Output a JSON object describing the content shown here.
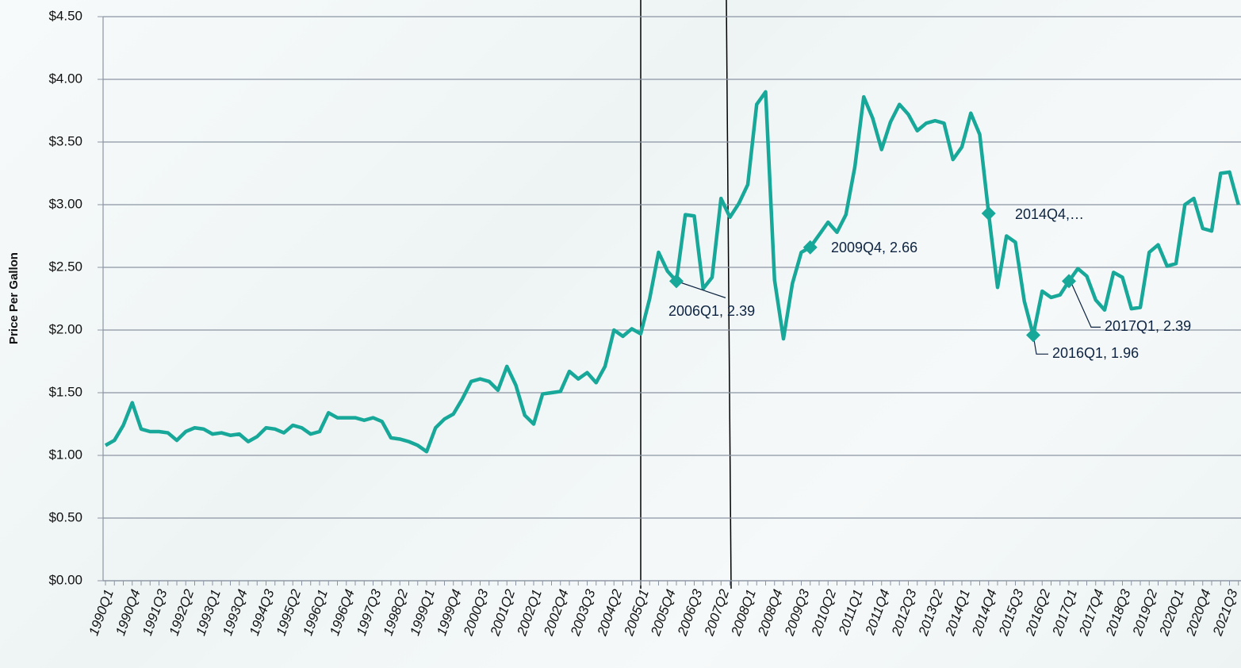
{
  "chart_data": {
    "type": "line",
    "y_axis_label": "Price Per Gallon",
    "categories": [
      "1990Q1",
      null,
      null,
      "1990Q4",
      null,
      null,
      "1991Q3",
      null,
      null,
      "1992Q2",
      null,
      null,
      "1993Q1",
      null,
      null,
      "1993Q4",
      null,
      null,
      "1994Q3",
      null,
      null,
      "1995Q2",
      null,
      null,
      "1996Q1",
      null,
      null,
      "1996Q4",
      null,
      null,
      "1997Q3",
      null,
      null,
      "1998Q2",
      null,
      null,
      "1999Q1",
      null,
      null,
      "1999Q4",
      null,
      null,
      "2000Q3",
      null,
      null,
      "2001Q2",
      null,
      null,
      "2002Q1",
      null,
      null,
      "2002Q4",
      null,
      null,
      "2003Q3",
      null,
      null,
      "2004Q2",
      null,
      null,
      "2005Q1",
      null,
      null,
      "2005Q4",
      null,
      null,
      "2006Q3",
      null,
      null,
      "2007Q2",
      null,
      null,
      "2008Q1",
      null,
      null,
      "2008Q4",
      null,
      null,
      "2009Q3",
      null,
      null,
      "2010Q2",
      null,
      null,
      "2011Q1",
      null,
      null,
      "2011Q4",
      null,
      null,
      "2012Q3",
      null,
      null,
      "2013Q2",
      null,
      null,
      "2014Q1",
      null,
      null,
      "2014Q4",
      null,
      null,
      "2015Q3",
      null,
      null,
      "2016Q2",
      null,
      null,
      "2017Q1",
      null,
      null,
      "2017Q4",
      null,
      null,
      "2018Q3",
      null,
      null,
      "2019Q2",
      null,
      null,
      "2020Q1",
      null,
      null,
      "2020Q4",
      null,
      null,
      "2021Q3",
      null
    ],
    "series": [
      {
        "name": "Price",
        "color": "#17a899",
        "values": [
          1.08,
          1.12,
          1.24,
          1.42,
          1.21,
          1.19,
          1.19,
          1.18,
          1.12,
          1.19,
          1.22,
          1.21,
          1.17,
          1.18,
          1.16,
          1.17,
          1.11,
          1.15,
          1.22,
          1.21,
          1.18,
          1.24,
          1.22,
          1.17,
          1.19,
          1.34,
          1.3,
          1.3,
          1.3,
          1.28,
          1.3,
          1.27,
          1.14,
          1.13,
          1.11,
          1.08,
          1.03,
          1.22,
          1.29,
          1.33,
          1.45,
          1.59,
          1.61,
          1.59,
          1.52,
          1.71,
          1.56,
          1.32,
          1.25,
          1.49,
          1.5,
          1.51,
          1.67,
          1.61,
          1.66,
          1.58,
          1.71,
          2.0,
          1.95,
          2.01,
          1.97,
          2.25,
          2.62,
          2.47,
          2.39,
          2.92,
          2.91,
          2.33,
          2.42,
          3.05,
          2.9,
          3.01,
          3.16,
          3.8,
          3.9,
          2.4,
          1.93,
          2.37,
          2.62,
          2.66,
          2.76,
          2.86,
          2.78,
          2.92,
          3.3,
          3.86,
          3.69,
          3.44,
          3.66,
          3.8,
          3.72,
          3.59,
          3.65,
          3.67,
          3.65,
          3.36,
          3.46,
          3.73,
          3.56,
          2.93,
          2.34,
          2.75,
          2.7,
          2.23,
          1.96,
          2.31,
          2.26,
          2.28,
          2.39,
          2.49,
          2.43,
          2.24,
          2.16,
          2.46,
          2.42,
          2.17,
          2.18,
          2.62,
          2.68,
          2.51,
          2.53,
          3.0,
          3.05,
          2.81,
          2.79,
          3.25,
          3.26,
          3.0
        ]
      }
    ],
    "annotations": [
      {
        "index": 64,
        "text": "2006Q1, 2.39"
      },
      {
        "index": 79,
        "text": "2009Q4, 2.66"
      },
      {
        "index": 99,
        "text": "2014Q4,…"
      },
      {
        "index": 104,
        "text": "2016Q1, 1.96"
      },
      {
        "index": 108,
        "text": "2017Q1, 2.39"
      }
    ],
    "ylim": [
      0,
      4.5
    ],
    "yticks": [
      {
        "value": 0,
        "label": "$0.00"
      },
      {
        "value": 0.5,
        "label": "$0.50"
      },
      {
        "value": 1,
        "label": "$1.00"
      },
      {
        "value": 1.5,
        "label": "$1.50"
      },
      {
        "value": 2,
        "label": "$2.00"
      },
      {
        "value": 2.5,
        "label": "$2.50"
      },
      {
        "value": 3,
        "label": "$3.00"
      },
      {
        "value": 3.5,
        "label": "$3.50"
      },
      {
        "value": 4,
        "label": "$4.00"
      },
      {
        "value": 4.5,
        "label": "$4.50"
      }
    ],
    "grid": true
  }
}
